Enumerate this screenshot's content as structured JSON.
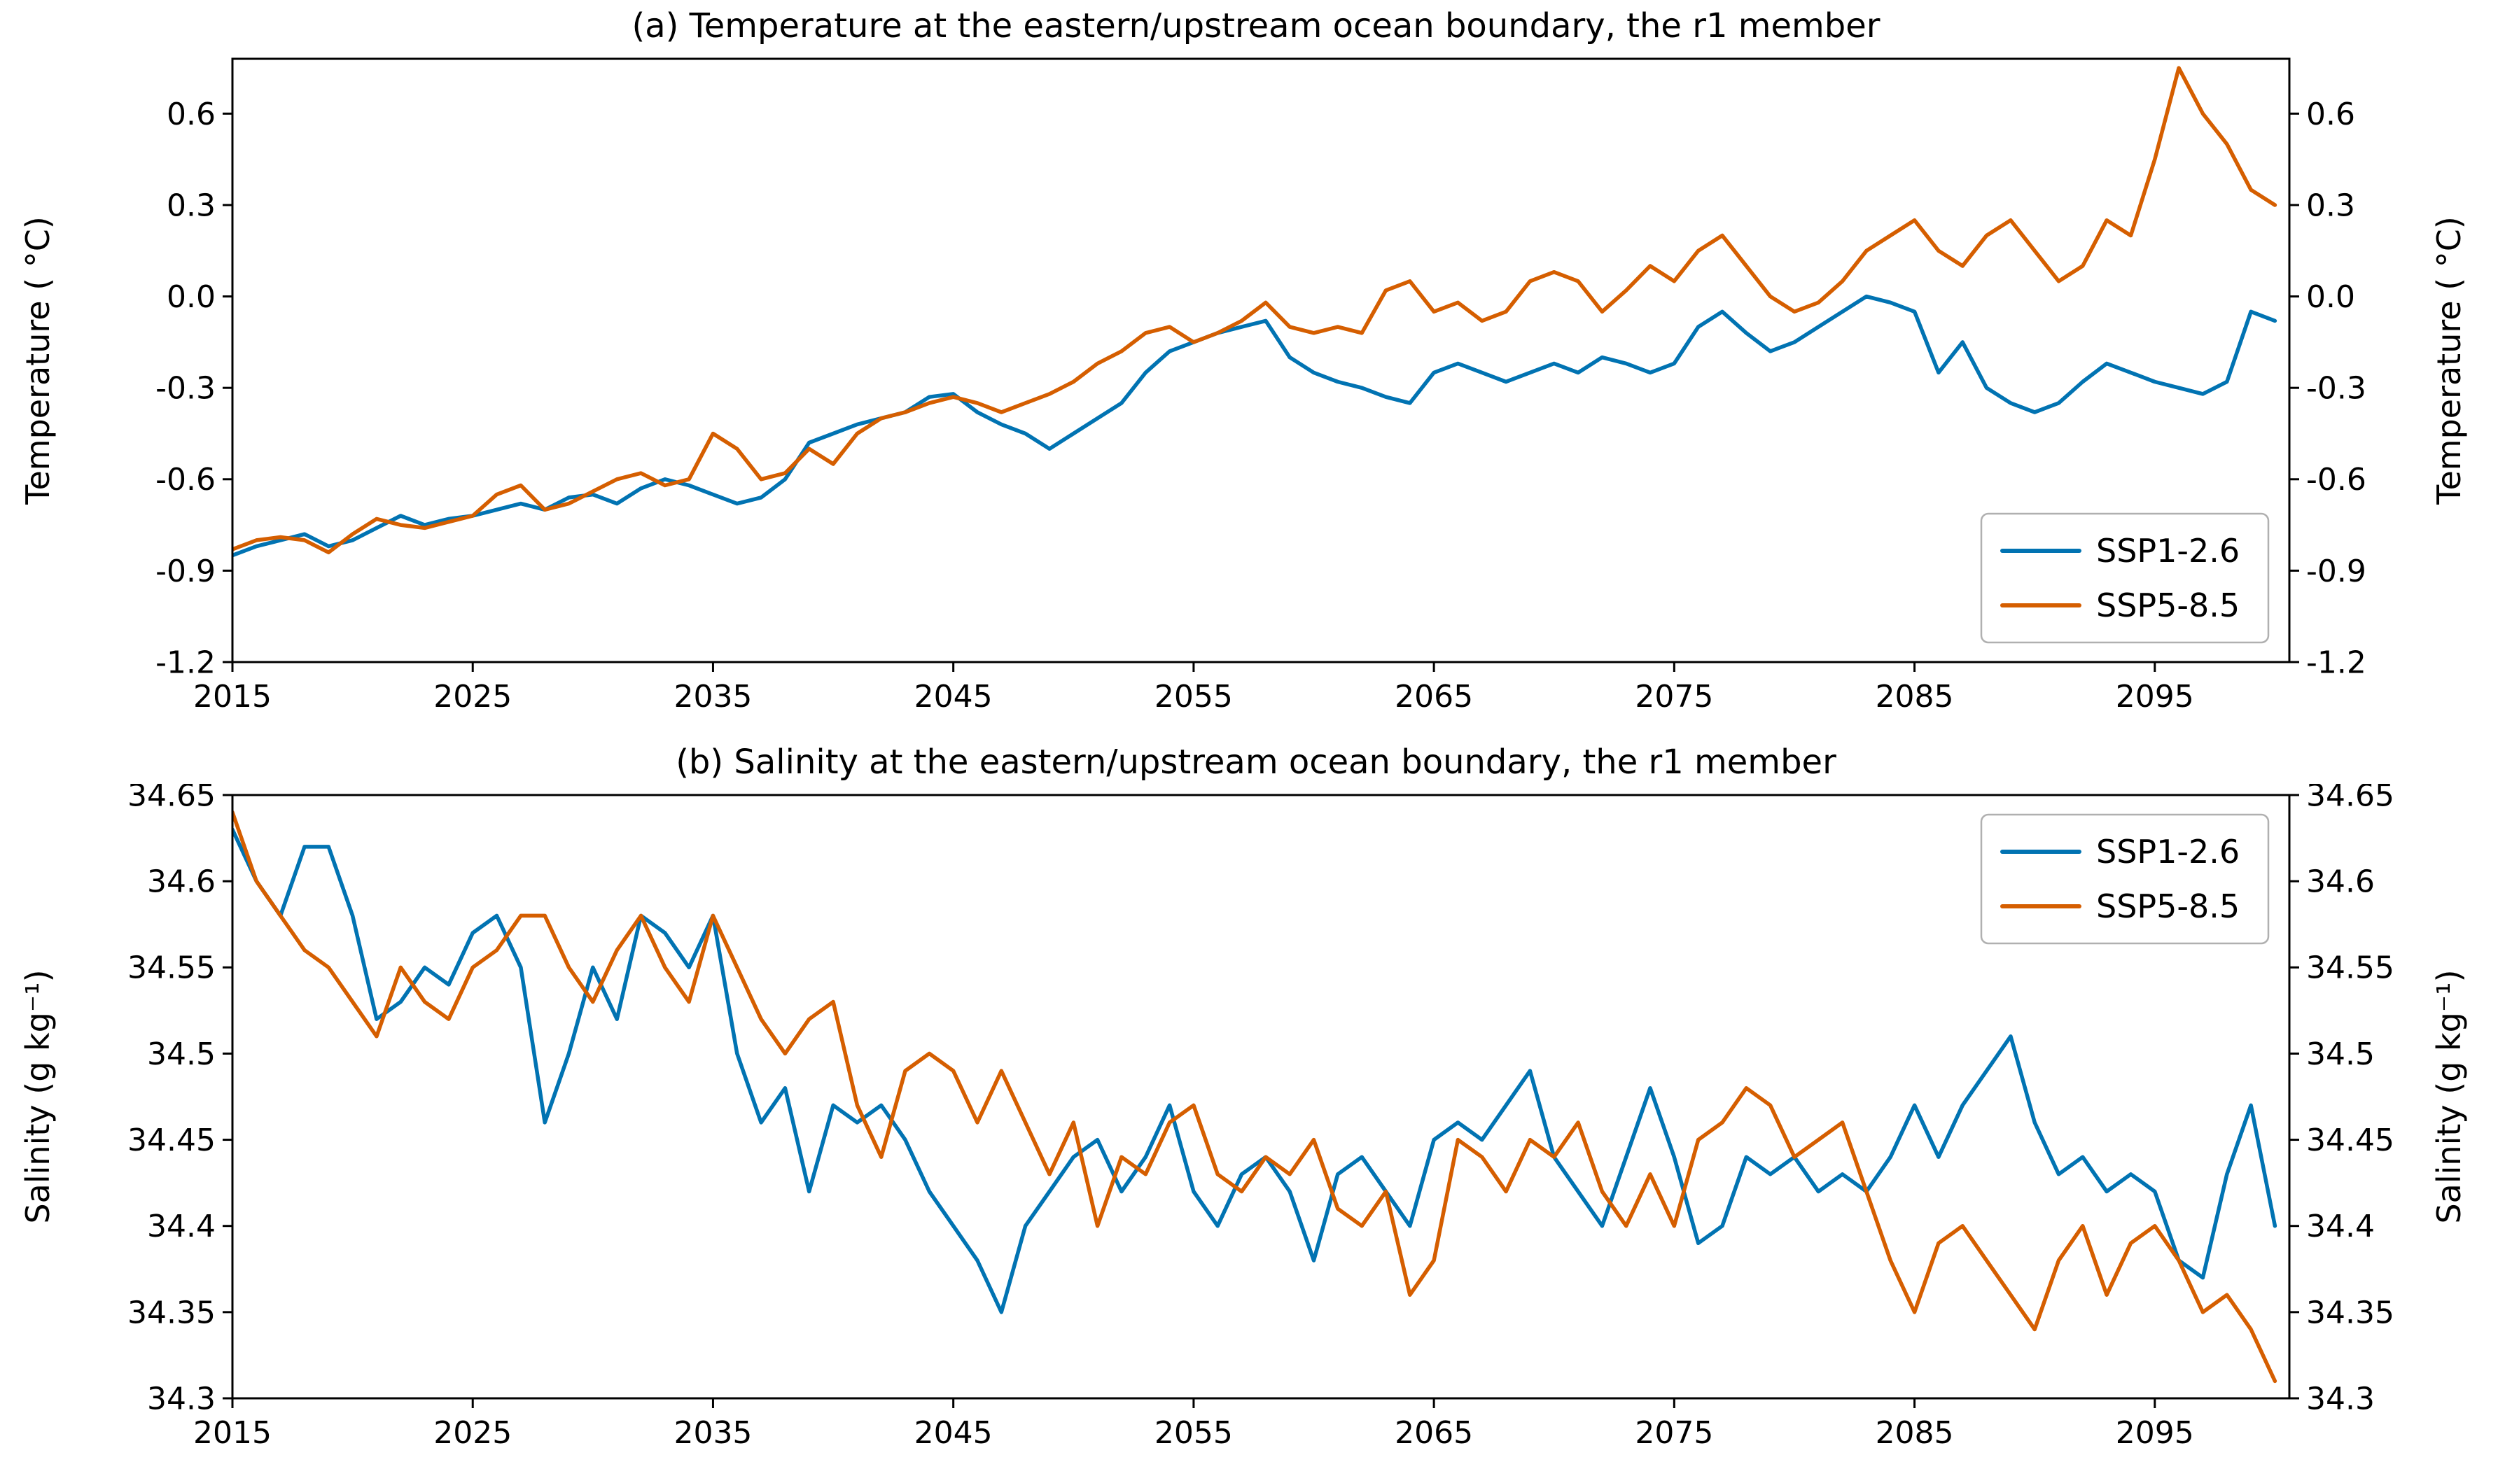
{
  "figure": {
    "background": "#ffffff"
  },
  "colors": {
    "axis": "#000000",
    "legend_border": "#b0b0b0"
  },
  "chart_data": [
    {
      "type": "line",
      "title": "(a) Temperature at the eastern/upstream ocean boundary, the r1 member",
      "ylabel": "Temperature ( °C)",
      "ylabel_right": "Temperature ( °C)",
      "xlim": [
        2015,
        2100.6
      ],
      "ylim": [
        -1.2,
        0.78
      ],
      "xticks": [
        2015,
        2025,
        2035,
        2045,
        2055,
        2065,
        2075,
        2085,
        2095
      ],
      "xtick_labels": [
        "2015",
        "2025",
        "2035",
        "2045",
        "2055",
        "2065",
        "2075",
        "2085",
        "2095"
      ],
      "yticks": [
        -1.2,
        -0.9,
        -0.6,
        -0.3,
        0.0,
        0.3,
        0.6
      ],
      "ytick_labels": [
        "-1.2",
        "-0.9",
        "-0.6",
        "-0.3",
        "0.0",
        "0.3",
        "0.6"
      ],
      "grid": false,
      "legend_position": "lower right",
      "x": [
        2015,
        2016,
        2017,
        2018,
        2019,
        2020,
        2021,
        2022,
        2023,
        2024,
        2025,
        2026,
        2027,
        2028,
        2029,
        2030,
        2031,
        2032,
        2033,
        2034,
        2035,
        2036,
        2037,
        2038,
        2039,
        2040,
        2041,
        2042,
        2043,
        2044,
        2045,
        2046,
        2047,
        2048,
        2049,
        2050,
        2051,
        2052,
        2053,
        2054,
        2055,
        2056,
        2057,
        2058,
        2059,
        2060,
        2061,
        2062,
        2063,
        2064,
        2065,
        2066,
        2067,
        2068,
        2069,
        2070,
        2071,
        2072,
        2073,
        2074,
        2075,
        2076,
        2077,
        2078,
        2079,
        2080,
        2081,
        2082,
        2083,
        2084,
        2085,
        2086,
        2087,
        2088,
        2089,
        2090,
        2091,
        2092,
        2093,
        2094,
        2095,
        2096,
        2097,
        2098,
        2099,
        2100
      ],
      "series": [
        {
          "name": "SSP1-2.6",
          "color": "#0173b2",
          "values": [
            -0.85,
            -0.82,
            -0.8,
            -0.78,
            -0.82,
            -0.8,
            -0.76,
            -0.72,
            -0.75,
            -0.73,
            -0.72,
            -0.7,
            -0.68,
            -0.7,
            -0.66,
            -0.65,
            -0.68,
            -0.63,
            -0.6,
            -0.62,
            -0.65,
            -0.68,
            -0.66,
            -0.6,
            -0.48,
            -0.45,
            -0.42,
            -0.4,
            -0.38,
            -0.33,
            -0.32,
            -0.38,
            -0.42,
            -0.45,
            -0.5,
            -0.45,
            -0.4,
            -0.35,
            -0.25,
            -0.18,
            -0.15,
            -0.12,
            -0.1,
            -0.08,
            -0.2,
            -0.25,
            -0.28,
            -0.3,
            -0.33,
            -0.35,
            -0.25,
            -0.22,
            -0.25,
            -0.28,
            -0.25,
            -0.22,
            -0.25,
            -0.2,
            -0.22,
            -0.25,
            -0.22,
            -0.1,
            -0.05,
            -0.12,
            -0.18,
            -0.15,
            -0.1,
            -0.05,
            0.0,
            -0.02,
            -0.05,
            -0.25,
            -0.15,
            -0.3,
            -0.35,
            -0.38,
            -0.35,
            -0.28,
            -0.22,
            -0.25,
            -0.28,
            -0.3,
            -0.32,
            -0.28,
            -0.05,
            -0.08
          ]
        },
        {
          "name": "SSP5-8.5",
          "color": "#d55e00",
          "values": [
            -0.83,
            -0.8,
            -0.79,
            -0.8,
            -0.84,
            -0.78,
            -0.73,
            -0.75,
            -0.76,
            -0.74,
            -0.72,
            -0.65,
            -0.62,
            -0.7,
            -0.68,
            -0.64,
            -0.6,
            -0.58,
            -0.62,
            -0.6,
            -0.45,
            -0.5,
            -0.6,
            -0.58,
            -0.5,
            -0.55,
            -0.45,
            -0.4,
            -0.38,
            -0.35,
            -0.33,
            -0.35,
            -0.38,
            -0.35,
            -0.32,
            -0.28,
            -0.22,
            -0.18,
            -0.12,
            -0.1,
            -0.15,
            -0.12,
            -0.08,
            -0.02,
            -0.1,
            -0.12,
            -0.1,
            -0.12,
            0.02,
            0.05,
            -0.05,
            -0.02,
            -0.08,
            -0.05,
            0.05,
            0.08,
            0.05,
            -0.05,
            0.02,
            0.1,
            0.05,
            0.15,
            0.2,
            0.1,
            0.0,
            -0.05,
            -0.02,
            0.05,
            0.15,
            0.2,
            0.25,
            0.15,
            0.1,
            0.2,
            0.25,
            0.15,
            0.05,
            0.1,
            0.25,
            0.2,
            0.45,
            0.75,
            0.6,
            0.5,
            0.35,
            0.3
          ]
        }
      ]
    },
    {
      "type": "line",
      "title": "(b) Salinity at the eastern/upstream ocean boundary, the r1 member",
      "ylabel": "Salinity (g kg⁻¹)",
      "ylabel_right": "Salinity (g kg⁻¹)",
      "xlim": [
        2015,
        2100.6
      ],
      "ylim": [
        34.3,
        34.65
      ],
      "xticks": [
        2015,
        2025,
        2035,
        2045,
        2055,
        2065,
        2075,
        2085,
        2095
      ],
      "xtick_labels": [
        "2015",
        "2025",
        "2035",
        "2045",
        "2055",
        "2065",
        "2075",
        "2085",
        "2095"
      ],
      "yticks": [
        34.3,
        34.35,
        34.4,
        34.45,
        34.5,
        34.55,
        34.6,
        34.65
      ],
      "ytick_labels": [
        "34.3",
        "34.35",
        "34.4",
        "34.45",
        "34.5",
        "34.55",
        "34.6",
        "34.65"
      ],
      "grid": false,
      "legend_position": "upper right",
      "x": [
        2015,
        2016,
        2017,
        2018,
        2019,
        2020,
        2021,
        2022,
        2023,
        2024,
        2025,
        2026,
        2027,
        2028,
        2029,
        2030,
        2031,
        2032,
        2033,
        2034,
        2035,
        2036,
        2037,
        2038,
        2039,
        2040,
        2041,
        2042,
        2043,
        2044,
        2045,
        2046,
        2047,
        2048,
        2049,
        2050,
        2051,
        2052,
        2053,
        2054,
        2055,
        2056,
        2057,
        2058,
        2059,
        2060,
        2061,
        2062,
        2063,
        2064,
        2065,
        2066,
        2067,
        2068,
        2069,
        2070,
        2071,
        2072,
        2073,
        2074,
        2075,
        2076,
        2077,
        2078,
        2079,
        2080,
        2081,
        2082,
        2083,
        2084,
        2085,
        2086,
        2087,
        2088,
        2089,
        2090,
        2091,
        2092,
        2093,
        2094,
        2095,
        2096,
        2097,
        2098,
        2099,
        2100
      ],
      "series": [
        {
          "name": "SSP1-2.6",
          "color": "#0173b2",
          "values": [
            34.63,
            34.6,
            34.58,
            34.62,
            34.62,
            34.58,
            34.52,
            34.53,
            34.55,
            34.54,
            34.57,
            34.58,
            34.55,
            34.46,
            34.5,
            34.55,
            34.52,
            34.58,
            34.57,
            34.55,
            34.58,
            34.5,
            34.46,
            34.48,
            34.42,
            34.47,
            34.46,
            34.47,
            34.45,
            34.42,
            34.4,
            34.38,
            34.35,
            34.4,
            34.42,
            34.44,
            34.45,
            34.42,
            34.44,
            34.47,
            34.42,
            34.4,
            34.43,
            34.44,
            34.42,
            34.38,
            34.43,
            34.44,
            34.42,
            34.4,
            34.45,
            34.46,
            34.45,
            34.47,
            34.49,
            34.44,
            34.42,
            34.4,
            34.44,
            34.48,
            34.44,
            34.39,
            34.4,
            34.44,
            34.43,
            34.44,
            34.42,
            34.43,
            34.42,
            34.44,
            34.47,
            34.44,
            34.47,
            34.49,
            34.51,
            34.46,
            34.43,
            34.44,
            34.42,
            34.43,
            34.42,
            34.38,
            34.37,
            34.43,
            34.47,
            34.4
          ]
        },
        {
          "name": "SSP5-8.5",
          "color": "#d55e00",
          "values": [
            34.64,
            34.6,
            34.58,
            34.56,
            34.55,
            34.53,
            34.51,
            34.55,
            34.53,
            34.52,
            34.55,
            34.56,
            34.58,
            34.58,
            34.55,
            34.53,
            34.56,
            34.58,
            34.55,
            34.53,
            34.58,
            34.55,
            34.52,
            34.5,
            34.52,
            34.53,
            34.47,
            34.44,
            34.49,
            34.5,
            34.49,
            34.46,
            34.49,
            34.46,
            34.43,
            34.46,
            34.4,
            34.44,
            34.43,
            34.46,
            34.47,
            34.43,
            34.42,
            34.44,
            34.43,
            34.45,
            34.41,
            34.4,
            34.42,
            34.36,
            34.38,
            34.45,
            34.44,
            34.42,
            34.45,
            34.44,
            34.46,
            34.42,
            34.4,
            34.43,
            34.4,
            34.45,
            34.46,
            34.48,
            34.47,
            34.44,
            34.45,
            34.46,
            34.42,
            34.38,
            34.35,
            34.39,
            34.4,
            34.38,
            34.36,
            34.34,
            34.38,
            34.4,
            34.36,
            34.39,
            34.4,
            34.38,
            34.35,
            34.36,
            34.34,
            34.31
          ]
        }
      ]
    }
  ]
}
